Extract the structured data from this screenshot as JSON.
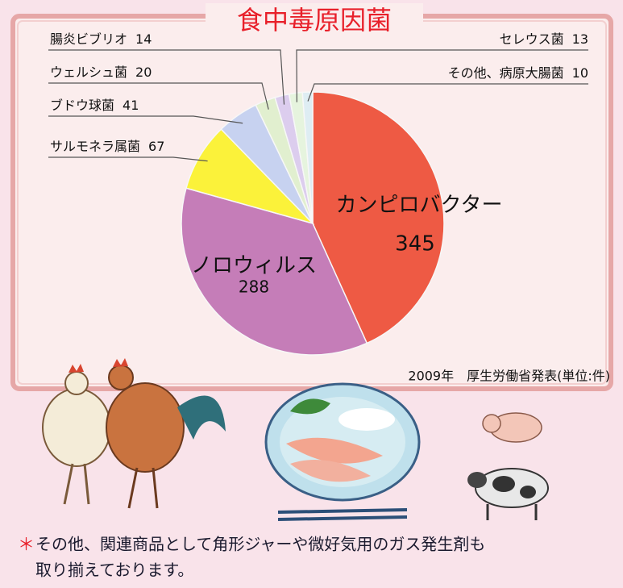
{
  "chart_data": {
    "type": "pie",
    "title": "食中毒原因菌",
    "categories": [
      "カンピロバクター",
      "ノロウィルス",
      "サルモネラ属菌",
      "ブドウ球菌",
      "ウェルシュ菌",
      "腸炎ビブリオ",
      "セレウス菌",
      "その他、病原大腸菌"
    ],
    "values": [
      345,
      288,
      67,
      41,
      20,
      14,
      13,
      10
    ],
    "colors": [
      "#ee5a44",
      "#c57db8",
      "#fbf23a",
      "#c7d2f0",
      "#e1efcf",
      "#dccdee",
      "#e6f4de",
      "#deedf3"
    ],
    "source": "2009年　厚生労働省発表(単位:件)"
  },
  "notice": {
    "mark": "＊",
    "lines": [
      "その他、関連商品として角形ジャーや微好気用のガス発生剤も",
      "取り揃えております。"
    ]
  }
}
